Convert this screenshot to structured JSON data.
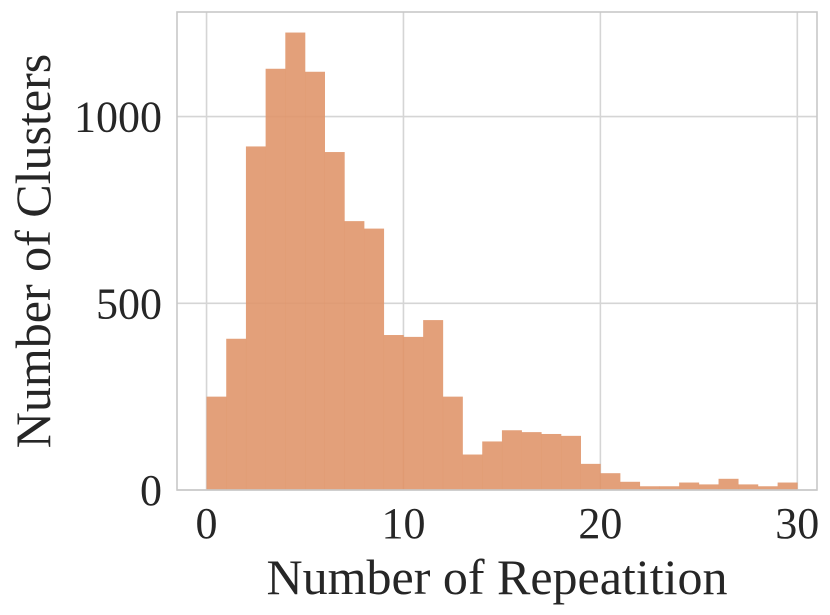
{
  "chart_data": {
    "type": "bar",
    "subtype": "histogram",
    "xlabel": "Number of Repeatition",
    "ylabel": "Number of Clusters",
    "xlim": [
      -1.5,
      31
    ],
    "ylim": [
      0,
      1280
    ],
    "xticks": [
      0,
      10,
      20,
      30
    ],
    "xtick_labels": [
      "0",
      "10",
      "20",
      "30"
    ],
    "yticks": [
      0,
      500,
      1000
    ],
    "ytick_labels": [
      "0",
      "500",
      "1000"
    ],
    "grid": true,
    "bar_color": "#E0966B",
    "bin_width": 1,
    "bins": [
      {
        "x0": 0,
        "x1": 1,
        "count": 250
      },
      {
        "x0": 1,
        "x1": 2,
        "count": 405
      },
      {
        "x0": 2,
        "x1": 3,
        "count": 920
      },
      {
        "x0": 3,
        "x1": 4,
        "count": 1128
      },
      {
        "x0": 4,
        "x1": 5,
        "count": 1225
      },
      {
        "x0": 5,
        "x1": 6,
        "count": 1120
      },
      {
        "x0": 6,
        "x1": 7,
        "count": 905
      },
      {
        "x0": 7,
        "x1": 8,
        "count": 720
      },
      {
        "x0": 8,
        "x1": 9,
        "count": 700
      },
      {
        "x0": 9,
        "x1": 10,
        "count": 415
      },
      {
        "x0": 10,
        "x1": 11,
        "count": 410
      },
      {
        "x0": 11,
        "x1": 12,
        "count": 455
      },
      {
        "x0": 12,
        "x1": 13,
        "count": 250
      },
      {
        "x0": 13,
        "x1": 14,
        "count": 95
      },
      {
        "x0": 14,
        "x1": 15,
        "count": 130
      },
      {
        "x0": 15,
        "x1": 16,
        "count": 160
      },
      {
        "x0": 16,
        "x1": 17,
        "count": 155
      },
      {
        "x0": 17,
        "x1": 18,
        "count": 150
      },
      {
        "x0": 18,
        "x1": 19,
        "count": 145
      },
      {
        "x0": 19,
        "x1": 20,
        "count": 70
      },
      {
        "x0": 20,
        "x1": 21,
        "count": 45
      },
      {
        "x0": 21,
        "x1": 22,
        "count": 22
      },
      {
        "x0": 22,
        "x1": 23,
        "count": 10
      },
      {
        "x0": 23,
        "x1": 24,
        "count": 10
      },
      {
        "x0": 24,
        "x1": 25,
        "count": 20
      },
      {
        "x0": 25,
        "x1": 26,
        "count": 15
      },
      {
        "x0": 26,
        "x1": 27,
        "count": 30
      },
      {
        "x0": 27,
        "x1": 28,
        "count": 15
      },
      {
        "x0": 28,
        "x1": 29,
        "count": 10
      },
      {
        "x0": 29,
        "x1": 30,
        "count": 20
      }
    ]
  }
}
